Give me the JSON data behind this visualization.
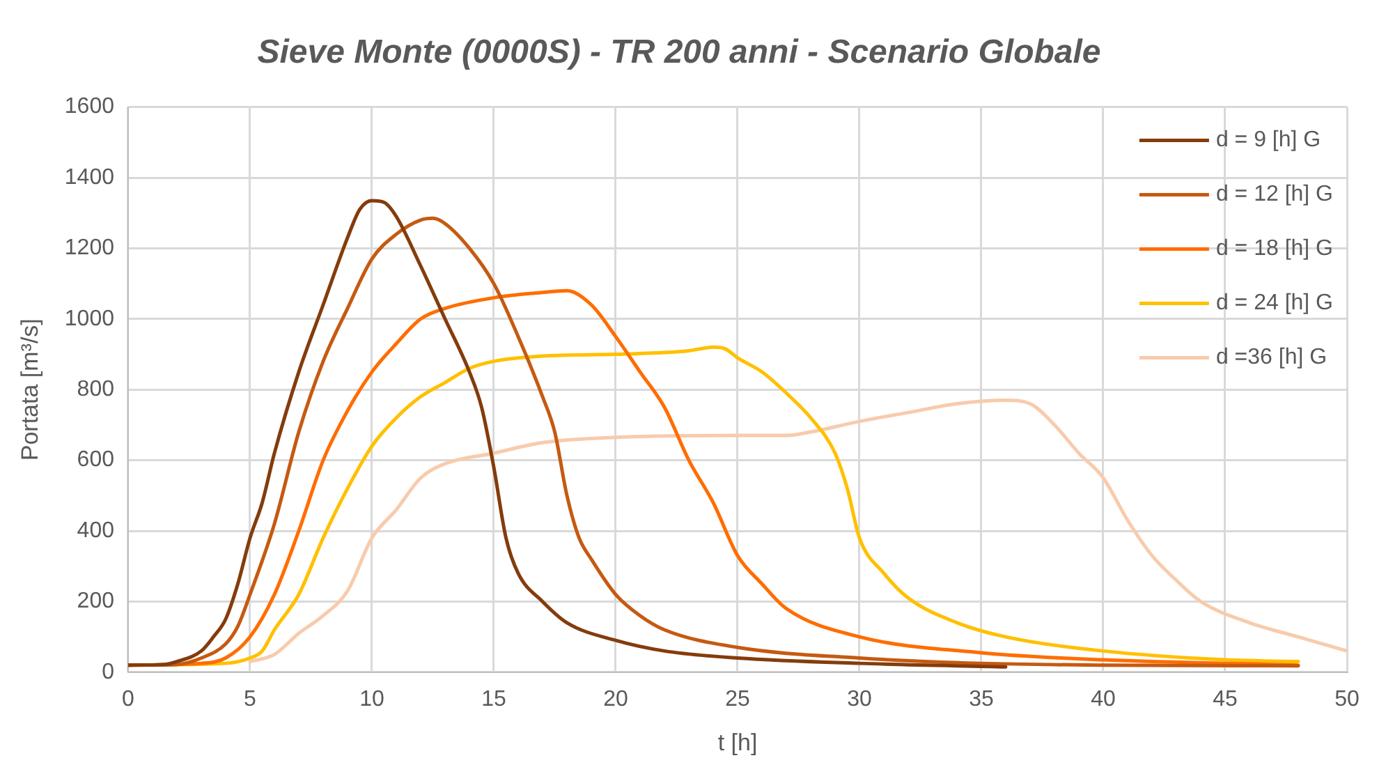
{
  "chart_data": {
    "type": "line",
    "title": "Sieve Monte (0000S) - TR 200 anni - Scenario Globale",
    "xlabel": "t [h]",
    "ylabel": "Portata [m³/s]",
    "xlim": [
      0,
      50
    ],
    "xticks": [
      0,
      5,
      10,
      15,
      20,
      25,
      30,
      35,
      40,
      45,
      50
    ],
    "ylim": [
      0,
      1600
    ],
    "yticks": [
      0,
      200,
      400,
      600,
      800,
      1000,
      1200,
      1400,
      1600
    ],
    "grid": true,
    "legend": "top right",
    "marker": "none",
    "line_style": "solid",
    "series": [
      {
        "name": "d = 9 [h] G",
        "color": "#843c0c",
        "x": [
          0,
          1.5,
          2,
          3,
          3.5,
          4,
          4.5,
          5,
          5.5,
          6,
          7,
          8,
          9,
          9.5,
          10,
          10.5,
          11,
          12,
          13,
          14,
          14.5,
          15,
          15.5,
          16,
          17,
          18,
          20,
          22,
          25,
          30,
          36
        ],
        "values": [
          20,
          22,
          30,
          60,
          100,
          150,
          250,
          380,
          480,
          620,
          850,
          1040,
          1230,
          1310,
          1335,
          1330,
          1290,
          1150,
          1000,
          850,
          750,
          580,
          380,
          280,
          200,
          140,
          90,
          60,
          40,
          25,
          15
        ]
      },
      {
        "name": "d = 12 [h] G",
        "color": "#c55a11",
        "x": [
          0,
          2,
          3,
          4,
          4.5,
          5,
          6,
          7,
          8,
          9,
          10,
          11,
          12,
          12.5,
          13,
          14,
          15,
          16,
          17,
          17.5,
          18,
          18.5,
          19,
          20,
          21,
          22,
          25,
          30,
          35,
          40,
          48
        ],
        "values": [
          20,
          22,
          40,
          80,
          130,
          220,
          420,
          680,
          880,
          1030,
          1170,
          1240,
          1280,
          1285,
          1270,
          1200,
          1100,
          950,
          780,
          680,
          500,
          380,
          320,
          220,
          160,
          120,
          70,
          40,
          25,
          20,
          18
        ]
      },
      {
        "name": "d = 18 [h] G",
        "color": "#ff6d00",
        "x": [
          0,
          3,
          4,
          5,
          6,
          7,
          8,
          9,
          10,
          11,
          12,
          13,
          15,
          17,
          18,
          19,
          20,
          21,
          22,
          23,
          24,
          25,
          26,
          27,
          30,
          35,
          40,
          48
        ],
        "values": [
          20,
          25,
          40,
          100,
          220,
          400,
          600,
          740,
          850,
          930,
          1000,
          1030,
          1060,
          1075,
          1080,
          1040,
          950,
          850,
          750,
          600,
          480,
          330,
          250,
          180,
          100,
          55,
          35,
          20
        ]
      },
      {
        "name": "d = 24 [h] G",
        "color": "#ffc000",
        "x": [
          0,
          4,
          5,
          5.5,
          6,
          7,
          8,
          9,
          10,
          11,
          12,
          13,
          14,
          15,
          17,
          20,
          22,
          23,
          24,
          24.5,
          25,
          26,
          27,
          28,
          29,
          29.5,
          30,
          31,
          32,
          34,
          36,
          40,
          45,
          48
        ],
        "values": [
          20,
          25,
          40,
          60,
          120,
          220,
          380,
          520,
          640,
          720,
          780,
          820,
          860,
          880,
          895,
          900,
          905,
          910,
          920,
          915,
          890,
          850,
          790,
          720,
          620,
          520,
          380,
          280,
          210,
          140,
          100,
          60,
          35,
          30
        ]
      },
      {
        "name": "d =36 [h] G",
        "color": "#f8cbad",
        "x": [
          5,
          6,
          7,
          8,
          9,
          10,
          11,
          12,
          13,
          15,
          17,
          20,
          25,
          27,
          28,
          30,
          32,
          34,
          36,
          37,
          38,
          39,
          40,
          41,
          42,
          43,
          44,
          46,
          48,
          50
        ],
        "values": [
          30,
          50,
          110,
          160,
          230,
          380,
          460,
          550,
          590,
          620,
          650,
          665,
          670,
          670,
          680,
          710,
          735,
          760,
          770,
          760,
          700,
          620,
          550,
          430,
          330,
          260,
          200,
          140,
          100,
          60
        ]
      }
    ]
  }
}
